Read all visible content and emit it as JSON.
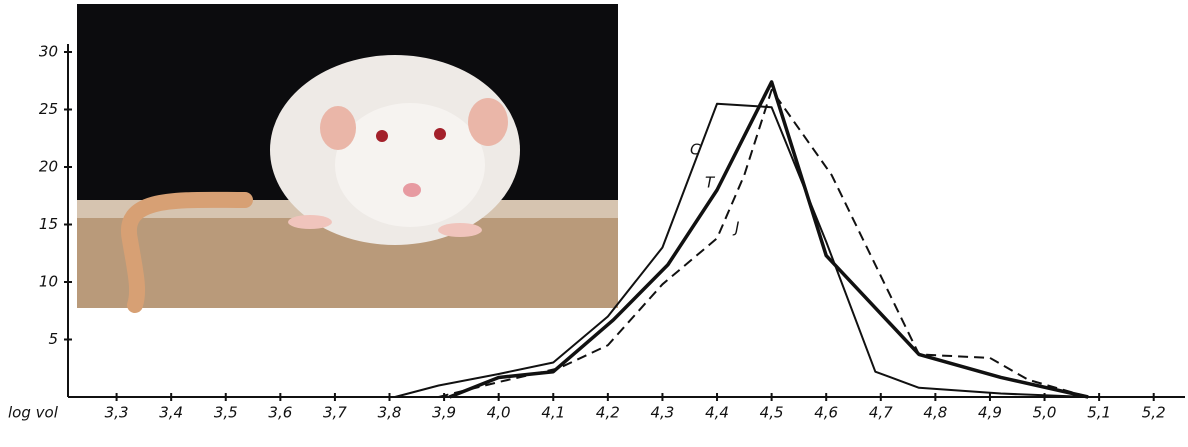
{
  "chart_data": {
    "type": "line",
    "x_label": "log vol",
    "xlim": [
      3.2,
      5.25
    ],
    "ylim": [
      0,
      30
    ],
    "xticks": [
      {
        "value": 3.3,
        "label": "3,3"
      },
      {
        "value": 3.4,
        "label": "3,4"
      },
      {
        "value": 3.5,
        "label": "3,5"
      },
      {
        "value": 3.6,
        "label": "3,6"
      },
      {
        "value": 3.7,
        "label": "3,7"
      },
      {
        "value": 3.8,
        "label": "3,8"
      },
      {
        "value": 3.9,
        "label": "3,9"
      },
      {
        "value": 4.0,
        "label": "4,0"
      },
      {
        "value": 4.1,
        "label": "4,1"
      },
      {
        "value": 4.2,
        "label": "4,2"
      },
      {
        "value": 4.3,
        "label": "4,3"
      },
      {
        "value": 4.4,
        "label": "4,4"
      },
      {
        "value": 4.5,
        "label": "4,5"
      },
      {
        "value": 4.6,
        "label": "4,6"
      },
      {
        "value": 4.7,
        "label": "4,7"
      },
      {
        "value": 4.8,
        "label": "4,8"
      },
      {
        "value": 4.9,
        "label": "4,9"
      },
      {
        "value": 5.0,
        "label": "5,0"
      },
      {
        "value": 5.1,
        "label": "5,1"
      },
      {
        "value": 5.2,
        "label": "5,2"
      }
    ],
    "yticks": [
      5,
      10,
      15,
      20,
      25,
      30
    ],
    "grid": false,
    "series": [
      {
        "name": "C",
        "color": "#111111",
        "width": 2,
        "dashed": false,
        "x": [
          3.81,
          3.89,
          4.0,
          4.1,
          4.2,
          4.3,
          4.4,
          4.5,
          4.6,
          4.69,
          4.77,
          4.92,
          5.08
        ],
        "values": [
          0,
          1,
          2,
          3,
          7,
          13,
          25.5,
          25.2,
          13.5,
          2.2,
          0.8,
          0.3,
          0
        ]
      },
      {
        "name": "T",
        "color": "#111111",
        "width": 3.5,
        "dashed": false,
        "x": [
          3.91,
          4.0,
          4.1,
          4.21,
          4.31,
          4.4,
          4.5,
          4.6,
          4.77,
          4.92,
          5.08
        ],
        "values": [
          0,
          1.7,
          2.2,
          6.7,
          11.5,
          18,
          27.4,
          12.3,
          3.7,
          1.7,
          0
        ]
      },
      {
        "name": "J",
        "color": "#111111",
        "width": 2,
        "dashed": true,
        "x": [
          3.89,
          4.0,
          4.11,
          4.2,
          4.3,
          4.4,
          4.45,
          4.5,
          4.61,
          4.77,
          4.9,
          4.97,
          5.08
        ],
        "values": [
          0,
          1.3,
          2.5,
          4.5,
          9.8,
          13.8,
          19.3,
          26.7,
          19.3,
          3.7,
          3.4,
          1.5,
          0
        ]
      }
    ]
  }
}
